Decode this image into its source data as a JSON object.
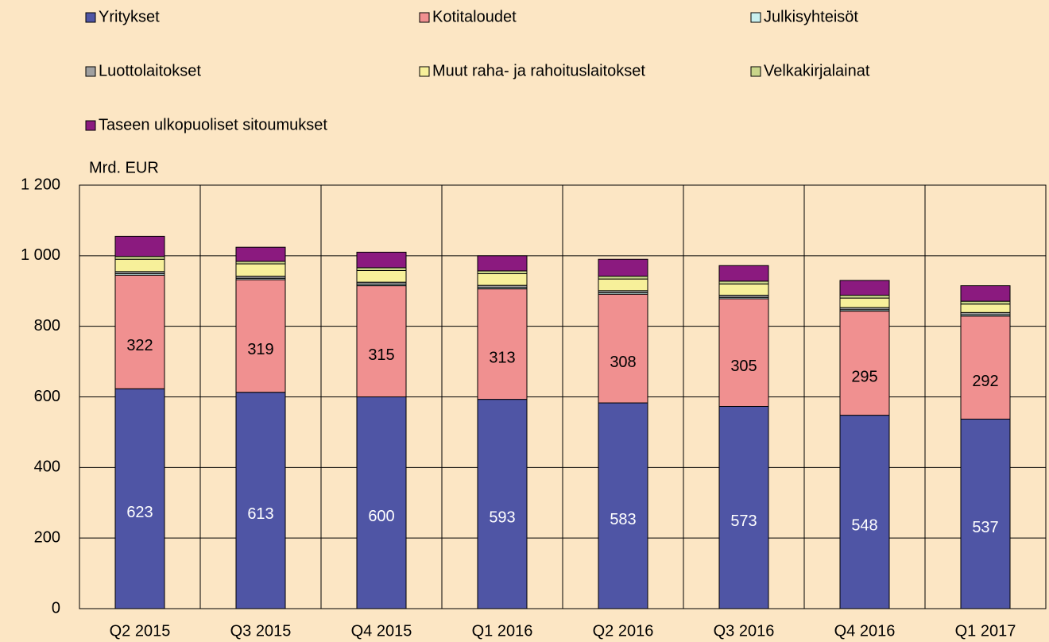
{
  "chart_data": {
    "type": "stacked_bar",
    "y_axis_label": "Mrd. EUR",
    "categories": [
      "Q2 2015",
      "Q3 2015",
      "Q4 2015",
      "Q1 2016",
      "Q2 2016",
      "Q3 2016",
      "Q4 2016",
      "Q1 2017"
    ],
    "series": [
      {
        "name": "Yritykset",
        "color": "#4f55a5",
        "values": [
          623,
          613,
          600,
          593,
          583,
          573,
          548,
          537
        ],
        "show_labels": true,
        "label_color": "#ffffff"
      },
      {
        "name": "Kotitaloudet",
        "color": "#f09090",
        "values": [
          322,
          319,
          315,
          313,
          308,
          305,
          295,
          292
        ],
        "show_labels": true,
        "label_color": "#000000"
      },
      {
        "name": "Julkisyhteisöt",
        "color": "#c9f0ef",
        "values": [
          4,
          4,
          4,
          4,
          4,
          4,
          4,
          4
        ]
      },
      {
        "name": "Luottolaitokset",
        "color": "#a0a0a0",
        "values": [
          6,
          6,
          6,
          6,
          6,
          6,
          6,
          6
        ]
      },
      {
        "name": "Muut raha- ja rahoituslaitokset",
        "color": "#f7f09a",
        "values": [
          35,
          35,
          33,
          33,
          33,
          32,
          27,
          24
        ]
      },
      {
        "name": "Velkakirjalainat",
        "color": "#c9d58a",
        "values": [
          8,
          7,
          8,
          8,
          8,
          8,
          8,
          8
        ]
      },
      {
        "name": "Taseen ulkopuoliset sitoumukset",
        "color": "#8b1a7f",
        "values": [
          57,
          40,
          44,
          43,
          48,
          44,
          42,
          44
        ]
      }
    ],
    "ylim": [
      0,
      1200
    ],
    "yticks": [
      0,
      200,
      400,
      600,
      800,
      {
        "value": 1000,
        "label": "1 000"
      },
      {
        "value": 1200,
        "label": "1 200"
      }
    ],
    "grid": true
  }
}
